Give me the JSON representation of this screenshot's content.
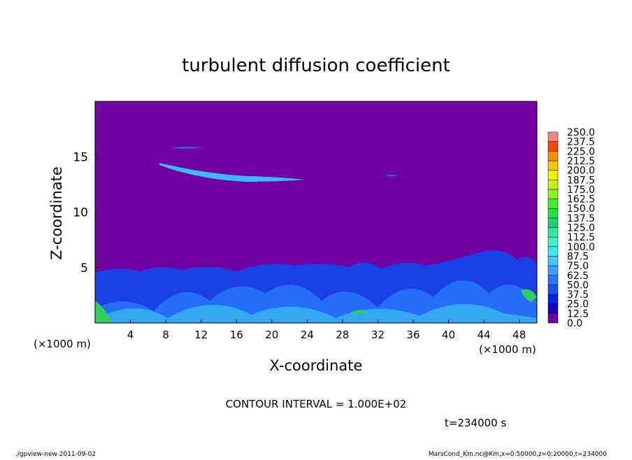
{
  "chart_data": {
    "type": "contour",
    "title": "turbulent diffusion coefficient",
    "x_label": "X-coordinate",
    "y_label": "Z-coordinate",
    "x_unit": "(×1000 m)",
    "y_unit": "(×1000 m)",
    "xlim": [
      0,
      50
    ],
    "ylim": [
      0,
      20
    ],
    "xticks": [
      4,
      8,
      12,
      16,
      20,
      24,
      28,
      32,
      36,
      40,
      44,
      48
    ],
    "yticks": [
      5,
      10,
      15
    ],
    "contour_interval": "CONTOUR INTERVAL = 1.000E+02",
    "time_label": "t=234000 s",
    "footer_left": "./gpview-new  2011-09-02",
    "footer_right": "MarsCond_Km.nc@Km,x=0:50000,z=0:20000,t=234000",
    "colorbar": {
      "levels": [
        {
          "value": 0,
          "label": "0.0"
        },
        {
          "value": 12.5,
          "label": "12.5"
        },
        {
          "value": 25,
          "label": "25.0"
        },
        {
          "value": 37.5,
          "label": "37.5"
        },
        {
          "value": 50,
          "label": "50.0"
        },
        {
          "value": 62.5,
          "label": "62.5"
        },
        {
          "value": 75,
          "label": "75.0"
        },
        {
          "value": 87.5,
          "label": "87.5"
        },
        {
          "value": 100,
          "label": "100.0"
        },
        {
          "value": 112.5,
          "label": "112.5"
        },
        {
          "value": 125,
          "label": "125.0"
        },
        {
          "value": 137.5,
          "label": "137.5"
        },
        {
          "value": 150,
          "label": "150.0"
        },
        {
          "value": 162.5,
          "label": "162.5"
        },
        {
          "value": 175,
          "label": "175.0"
        },
        {
          "value": 187.5,
          "label": "187.5"
        },
        {
          "value": 200,
          "label": "200.0"
        },
        {
          "value": 212.5,
          "label": "212.5"
        },
        {
          "value": 225,
          "label": "225.0"
        },
        {
          "value": 237.5,
          "label": "237.5"
        },
        {
          "value": 250,
          "label": "250.0"
        }
      ],
      "colors": [
        "#7000a0",
        "#1800c8",
        "#0020f0",
        "#1850f0",
        "#2878ff",
        "#40a0ff",
        "#40c8ff",
        "#40e8f0",
        "#40f0d0",
        "#30e8a0",
        "#20d070",
        "#20e040",
        "#40f020",
        "#90f020",
        "#c8f010",
        "#f0f000",
        "#f8c800",
        "#f89000",
        "#f84800",
        "#f08888"
      ]
    }
  }
}
